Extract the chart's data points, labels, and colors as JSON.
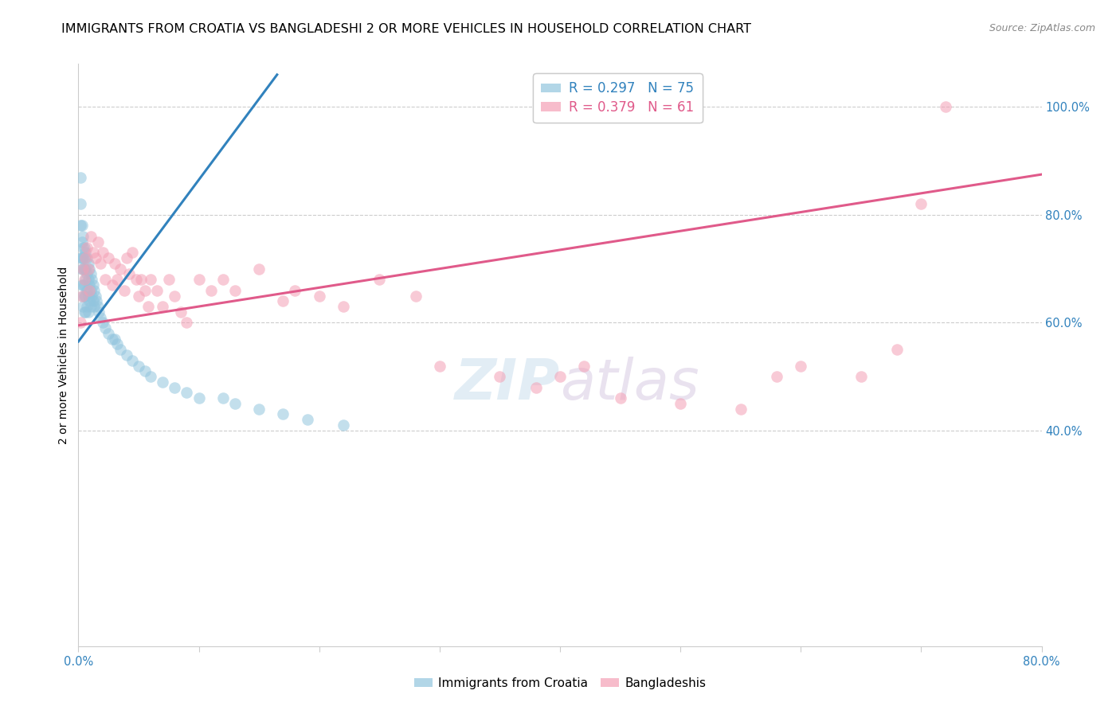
{
  "title": "IMMIGRANTS FROM CROATIA VS BANGLADESHI 2 OR MORE VEHICLES IN HOUSEHOLD CORRELATION CHART",
  "source": "Source: ZipAtlas.com",
  "ylabel": "2 or more Vehicles in Household",
  "watermark": "ZIPatlas",
  "xlim": [
    0.0,
    0.8
  ],
  "ylim": [
    0.0,
    1.08
  ],
  "x_ticks": [
    0.0,
    0.1,
    0.2,
    0.3,
    0.4,
    0.5,
    0.6,
    0.7,
    0.8
  ],
  "x_tick_labels": [
    "0.0%",
    "",
    "",
    "",
    "",
    "",
    "",
    "",
    "80.0%"
  ],
  "y_tick_labels_right": [
    "100.0%",
    "80.0%",
    "60.0%",
    "40.0%"
  ],
  "y_tick_positions_right": [
    1.0,
    0.8,
    0.6,
    0.4
  ],
  "blue_color": "#92c5de",
  "pink_color": "#f4a0b5",
  "blue_line_color": "#3182bd",
  "pink_line_color": "#e05a8a",
  "grid_color": "#cccccc",
  "background_color": "#ffffff",
  "title_fontsize": 11.5,
  "axis_label_fontsize": 10,
  "tick_fontsize": 10.5,
  "blue_scatter_x": [
    0.002,
    0.002,
    0.002,
    0.002,
    0.003,
    0.003,
    0.003,
    0.003,
    0.003,
    0.004,
    0.004,
    0.004,
    0.004,
    0.004,
    0.004,
    0.004,
    0.005,
    0.005,
    0.005,
    0.005,
    0.005,
    0.005,
    0.006,
    0.006,
    0.006,
    0.006,
    0.006,
    0.007,
    0.007,
    0.007,
    0.007,
    0.008,
    0.008,
    0.008,
    0.008,
    0.009,
    0.009,
    0.009,
    0.01,
    0.01,
    0.01,
    0.011,
    0.011,
    0.012,
    0.012,
    0.013,
    0.013,
    0.014,
    0.015,
    0.016,
    0.017,
    0.018,
    0.02,
    0.022,
    0.025,
    0.028,
    0.03,
    0.032,
    0.035,
    0.04,
    0.045,
    0.05,
    0.055,
    0.06,
    0.07,
    0.08,
    0.09,
    0.1,
    0.12,
    0.13,
    0.15,
    0.17,
    0.19,
    0.22
  ],
  "blue_scatter_y": [
    0.87,
    0.82,
    0.78,
    0.72,
    0.78,
    0.75,
    0.72,
    0.7,
    0.67,
    0.76,
    0.74,
    0.72,
    0.7,
    0.67,
    0.65,
    0.63,
    0.74,
    0.72,
    0.7,
    0.67,
    0.65,
    0.62,
    0.73,
    0.7,
    0.68,
    0.65,
    0.62,
    0.72,
    0.69,
    0.66,
    0.63,
    0.71,
    0.68,
    0.65,
    0.62,
    0.7,
    0.67,
    0.64,
    0.69,
    0.66,
    0.63,
    0.68,
    0.65,
    0.67,
    0.64,
    0.66,
    0.63,
    0.65,
    0.64,
    0.63,
    0.62,
    0.61,
    0.6,
    0.59,
    0.58,
    0.57,
    0.57,
    0.56,
    0.55,
    0.54,
    0.53,
    0.52,
    0.51,
    0.5,
    0.49,
    0.48,
    0.47,
    0.46,
    0.46,
    0.45,
    0.44,
    0.43,
    0.42,
    0.41
  ],
  "pink_scatter_x": [
    0.002,
    0.003,
    0.004,
    0.005,
    0.006,
    0.007,
    0.008,
    0.009,
    0.01,
    0.012,
    0.014,
    0.016,
    0.018,
    0.02,
    0.022,
    0.025,
    0.028,
    0.03,
    0.032,
    0.035,
    0.038,
    0.04,
    0.042,
    0.045,
    0.048,
    0.05,
    0.052,
    0.055,
    0.058,
    0.06,
    0.065,
    0.07,
    0.075,
    0.08,
    0.085,
    0.09,
    0.1,
    0.11,
    0.12,
    0.13,
    0.15,
    0.17,
    0.18,
    0.2,
    0.22,
    0.25,
    0.28,
    0.3,
    0.35,
    0.38,
    0.4,
    0.42,
    0.45,
    0.5,
    0.55,
    0.58,
    0.6,
    0.65,
    0.68,
    0.7,
    0.72
  ],
  "pink_scatter_y": [
    0.6,
    0.65,
    0.7,
    0.68,
    0.72,
    0.74,
    0.7,
    0.66,
    0.76,
    0.73,
    0.72,
    0.75,
    0.71,
    0.73,
    0.68,
    0.72,
    0.67,
    0.71,
    0.68,
    0.7,
    0.66,
    0.72,
    0.69,
    0.73,
    0.68,
    0.65,
    0.68,
    0.66,
    0.63,
    0.68,
    0.66,
    0.63,
    0.68,
    0.65,
    0.62,
    0.6,
    0.68,
    0.66,
    0.68,
    0.66,
    0.7,
    0.64,
    0.66,
    0.65,
    0.63,
    0.68,
    0.65,
    0.52,
    0.5,
    0.48,
    0.5,
    0.52,
    0.46,
    0.45,
    0.44,
    0.5,
    0.52,
    0.5,
    0.55,
    0.82,
    1.0
  ],
  "blue_line_x": [
    0.0,
    0.165
  ],
  "blue_line_y": [
    0.565,
    1.06
  ],
  "pink_line_x": [
    0.0,
    0.8
  ],
  "pink_line_y": [
    0.595,
    0.875
  ]
}
